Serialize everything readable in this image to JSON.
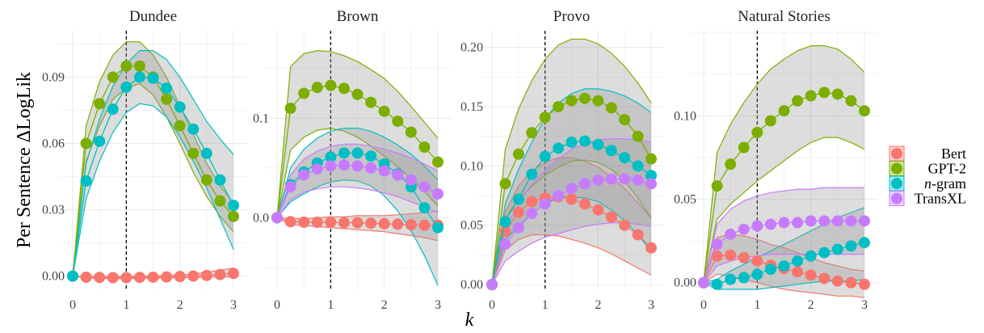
{
  "chart_data": {
    "type": "line",
    "ylabel": "Per Sentence ΔLogLik",
    "xlabel": "k",
    "x_ticks": [
      0,
      1,
      2,
      3
    ],
    "vline_x": 1,
    "legend": {
      "placement": "right",
      "entries": [
        {
          "name": "Bert",
          "color": "#f8766d"
        },
        {
          "name": "GPT-2",
          "color": "#7cae00"
        },
        {
          "name": "n-gram",
          "color": "#00bfc4"
        },
        {
          "name": "TransXL",
          "color": "#c77cff"
        }
      ]
    },
    "x": [
      0,
      0.25,
      0.5,
      0.75,
      1.0,
      1.25,
      1.5,
      1.75,
      2.0,
      2.25,
      2.5,
      2.75,
      3.0
    ],
    "panels": [
      {
        "title": "Dundee",
        "ylim": [
          -0.006,
          0.111
        ],
        "y_ticks": [
          0.0,
          0.03,
          0.06,
          0.09
        ],
        "y_tick_labels": [
          "0.00",
          "0.03",
          "0.06",
          "0.09"
        ],
        "series": [
          {
            "name": "Bert",
            "values": [
              0.0,
              -0.0005,
              -0.0006,
              -0.0007,
              -0.0007,
              -0.0006,
              -0.0005,
              -0.0004,
              -0.0002,
              0.0,
              0.0003,
              0.0007,
              0.0012
            ],
            "lower": [
              0.0,
              -0.0008,
              -0.001,
              -0.0011,
              -0.0011,
              -0.001,
              -0.0009,
              -0.0008,
              -0.0007,
              -0.0006,
              -0.0005,
              -0.0004,
              -0.0003
            ],
            "upper": [
              0.0,
              -0.0002,
              -0.0002,
              -0.0002,
              -0.0002,
              -0.0001,
              0.0,
              0.0002,
              0.0005,
              0.001,
              0.0017,
              0.0026,
              0.0037
            ]
          },
          {
            "name": "GPT-2",
            "values": [
              0.0,
              0.06,
              0.078,
              0.09,
              0.095,
              0.095,
              0.09,
              0.08,
              0.068,
              0.0555,
              0.0435,
              0.034,
              0.027
            ],
            "lower": [
              0.0,
              0.052,
              0.068,
              0.08,
              0.085,
              0.087,
              0.082,
              0.072,
              0.06,
              0.047,
              0.036,
              0.027,
              0.02
            ],
            "upper": [
              0.0,
              0.068,
              0.088,
              0.1,
              0.106,
              0.106,
              0.1,
              0.09,
              0.077,
              0.064,
              0.051,
              0.041,
              0.033
            ]
          },
          {
            "name": "n-gram",
            "values": [
              0.0,
              0.043,
              0.061,
              0.0755,
              0.0855,
              0.09,
              0.0895,
              0.085,
              0.0765,
              0.0665,
              0.0555,
              0.0435,
              0.032
            ],
            "lower": [
              0.0,
              0.035,
              0.052,
              0.065,
              0.074,
              0.078,
              0.077,
              0.072,
              0.063,
              0.052,
              0.04,
              0.026,
              0.012
            ],
            "upper": [
              0.0,
              0.051,
              0.071,
              0.086,
              0.096,
              0.102,
              0.102,
              0.098,
              0.09,
              0.08,
              0.07,
              0.062,
              0.055
            ]
          }
        ]
      },
      {
        "title": "Brown",
        "ylim": [
          -0.072,
          0.188
        ],
        "y_ticks": [
          0.0,
          0.1
        ],
        "y_tick_labels": [
          "0.0",
          "0.1"
        ],
        "series": [
          {
            "name": "Bert",
            "values": [
              0.0,
              -0.004,
              -0.0045,
              -0.0045,
              -0.0045,
              -0.005,
              -0.005,
              -0.0055,
              -0.006,
              -0.0065,
              -0.007,
              -0.0075,
              -0.0075
            ],
            "lower": [
              0.0,
              -0.007,
              -0.008,
              -0.009,
              -0.01,
              -0.011,
              -0.012,
              -0.013,
              -0.014,
              -0.016,
              -0.018,
              -0.02,
              -0.023
            ],
            "upper": [
              0.0,
              -0.001,
              -0.001,
              0.0,
              0.001,
              0.001,
              0.002,
              0.002,
              0.002,
              0.003,
              0.004,
              0.005,
              0.007
            ]
          },
          {
            "name": "GPT-2",
            "values": [
              0.0,
              0.11,
              0.125,
              0.131,
              0.133,
              0.13,
              0.124,
              0.116,
              0.107,
              0.097,
              0.086,
              0.071,
              0.056
            ],
            "lower": [
              0.0,
              0.068,
              0.081,
              0.088,
              0.09,
              0.087,
              0.081,
              0.072,
              0.062,
              0.051,
              0.039,
              0.026,
              0.012
            ],
            "upper": [
              0.0,
              0.152,
              0.165,
              0.168,
              0.167,
              0.163,
              0.157,
              0.149,
              0.14,
              0.127,
              0.112,
              0.096,
              0.08
            ]
          },
          {
            "name": "n-gram",
            "values": [
              0.0,
              0.033,
              0.046,
              0.055,
              0.061,
              0.065,
              0.065,
              0.062,
              0.054,
              0.044,
              0.031,
              0.01,
              -0.01
            ],
            "lower": [
              0.0,
              0.016,
              0.024,
              0.031,
              0.036,
              0.038,
              0.037,
              0.032,
              0.022,
              0.007,
              -0.013,
              -0.038,
              -0.068
            ],
            "upper": [
              0.0,
              0.05,
              0.069,
              0.08,
              0.087,
              0.09,
              0.09,
              0.087,
              0.081,
              0.073,
              0.064,
              0.052,
              0.038
            ]
          },
          {
            "name": "TransXL",
            "values": [
              0.0,
              0.031,
              0.043,
              0.049,
              0.052,
              0.053,
              0.052,
              0.05,
              0.047,
              0.043,
              0.038,
              0.031,
              0.024
            ],
            "lower": [
              0.0,
              0.018,
              0.026,
              0.029,
              0.031,
              0.031,
              0.03,
              0.028,
              0.025,
              0.021,
              0.016,
              0.011,
              0.005
            ],
            "upper": [
              0.0,
              0.043,
              0.059,
              0.067,
              0.072,
              0.074,
              0.074,
              0.072,
              0.069,
              0.065,
              0.06,
              0.054,
              0.047
            ]
          }
        ]
      },
      {
        "title": "Provo",
        "ylim": [
          -0.004,
          0.214
        ],
        "y_ticks": [
          0.0,
          0.05,
          0.1,
          0.15,
          0.2
        ],
        "y_tick_labels": [
          "0.00",
          "0.05",
          "0.10",
          "0.15",
          "0.20"
        ],
        "series": [
          {
            "name": "Bert",
            "values": [
              0.0,
              0.045,
              0.061,
              0.07,
              0.073,
              0.074,
              0.072,
              0.068,
              0.063,
              0.057,
              0.05,
              0.042,
              0.031
            ],
            "lower": [
              0.0,
              0.029,
              0.038,
              0.042,
              0.042,
              0.041,
              0.038,
              0.035,
              0.031,
              0.026,
              0.02,
              0.014,
              0.008
            ],
            "upper": [
              0.0,
              0.061,
              0.083,
              0.096,
              0.103,
              0.107,
              0.107,
              0.104,
              0.099,
              0.091,
              0.081,
              0.069,
              0.056
            ]
          },
          {
            "name": "GPT-2",
            "values": [
              0.0,
              0.085,
              0.11,
              0.128,
              0.141,
              0.15,
              0.155,
              0.157,
              0.155,
              0.149,
              0.139,
              0.125,
              0.106
            ],
            "lower": [
              0.0,
              0.056,
              0.072,
              0.083,
              0.092,
              0.099,
              0.104,
              0.105,
              0.103,
              0.097,
              0.087,
              0.073,
              0.056
            ],
            "upper": [
              0.0,
              0.114,
              0.148,
              0.172,
              0.19,
              0.202,
              0.207,
              0.207,
              0.203,
              0.195,
              0.184,
              0.17,
              0.153
            ]
          },
          {
            "name": "n-gram",
            "values": [
              0.0,
              0.053,
              0.072,
              0.093,
              0.108,
              0.115,
              0.12,
              0.121,
              0.118,
              0.113,
              0.107,
              0.1,
              0.092
            ],
            "lower": [
              0.0,
              0.038,
              0.049,
              0.06,
              0.068,
              0.073,
              0.074,
              0.073,
              0.07,
              0.063,
              0.054,
              0.042,
              0.028
            ],
            "upper": [
              0.0,
              0.068,
              0.097,
              0.12,
              0.14,
              0.153,
              0.161,
              0.165,
              0.165,
              0.163,
              0.159,
              0.153,
              0.145
            ]
          },
          {
            "name": "TransXL",
            "values": [
              0.0,
              0.034,
              0.048,
              0.06,
              0.068,
              0.075,
              0.081,
              0.085,
              0.088,
              0.089,
              0.089,
              0.088,
              0.085
            ],
            "lower": [
              0.0,
              0.02,
              0.028,
              0.035,
              0.04,
              0.043,
              0.046,
              0.049,
              0.051,
              0.052,
              0.052,
              0.051,
              0.049
            ],
            "upper": [
              0.0,
              0.048,
              0.068,
              0.085,
              0.096,
              0.106,
              0.114,
              0.119,
              0.122,
              0.123,
              0.123,
              0.122,
              0.12
            ]
          }
        ]
      },
      {
        "title": "Natural Stories",
        "ylim": [
          -0.004,
          0.151
        ],
        "y_ticks": [
          0.0,
          0.05,
          0.1
        ],
        "y_tick_labels": [
          "0.00",
          "0.05",
          "0.10"
        ],
        "series": [
          {
            "name": "Bert",
            "values": [
              0.0,
              0.016,
              0.0165,
              0.015,
              0.013,
              0.0105,
              0.0085,
              0.0065,
              0.0045,
              0.0025,
              0.001,
              0.0,
              -0.001
            ],
            "lower": [
              0.0,
              0.005,
              0.004,
              0.002,
              0.0,
              -0.002,
              -0.004,
              -0.005,
              -0.006,
              -0.007,
              -0.008,
              -0.008,
              -0.009
            ],
            "upper": [
              0.0,
              0.027,
              0.029,
              0.028,
              0.026,
              0.023,
              0.021,
              0.018,
              0.015,
              0.012,
              0.01,
              0.008,
              0.007
            ]
          },
          {
            "name": "GPT-2",
            "values": [
              0.0,
              0.058,
              0.071,
              0.081,
              0.09,
              0.097,
              0.103,
              0.109,
              0.112,
              0.114,
              0.113,
              0.109,
              0.103
            ],
            "lower": [
              0.0,
              0.038,
              0.047,
              0.054,
              0.061,
              0.067,
              0.073,
              0.079,
              0.084,
              0.087,
              0.087,
              0.084,
              0.08
            ],
            "upper": [
              0.0,
              0.078,
              0.095,
              0.108,
              0.119,
              0.128,
              0.134,
              0.139,
              0.142,
              0.142,
              0.14,
              0.134,
              0.126
            ]
          },
          {
            "name": "n-gram",
            "values": [
              0.0,
              -0.001,
              0.002,
              0.003,
              0.005,
              0.008,
              0.01,
              0.013,
              0.016,
              0.018,
              0.02,
              0.022,
              0.024
            ],
            "lower": [
              0.0,
              -0.004,
              -0.004,
              -0.004,
              -0.004,
              -0.003,
              -0.002,
              -0.001,
              0.0,
              0.001,
              0.001,
              0.001,
              0.002
            ],
            "upper": [
              0.0,
              0.002,
              0.007,
              0.011,
              0.015,
              0.019,
              0.023,
              0.027,
              0.031,
              0.035,
              0.039,
              0.042,
              0.045
            ]
          },
          {
            "name": "TransXL",
            "values": [
              0.0,
              0.023,
              0.029,
              0.032,
              0.034,
              0.035,
              0.036,
              0.036,
              0.037,
              0.037,
              0.037,
              0.037,
              0.037
            ],
            "lower": [
              0.0,
              0.01,
              0.013,
              0.015,
              0.016,
              0.017,
              0.017,
              0.017,
              0.017,
              0.017,
              0.017,
              0.017,
              0.017
            ],
            "upper": [
              0.0,
              0.035,
              0.044,
              0.049,
              0.052,
              0.054,
              0.055,
              0.056,
              0.056,
              0.057,
              0.057,
              0.057,
              0.057
            ]
          }
        ]
      }
    ]
  }
}
